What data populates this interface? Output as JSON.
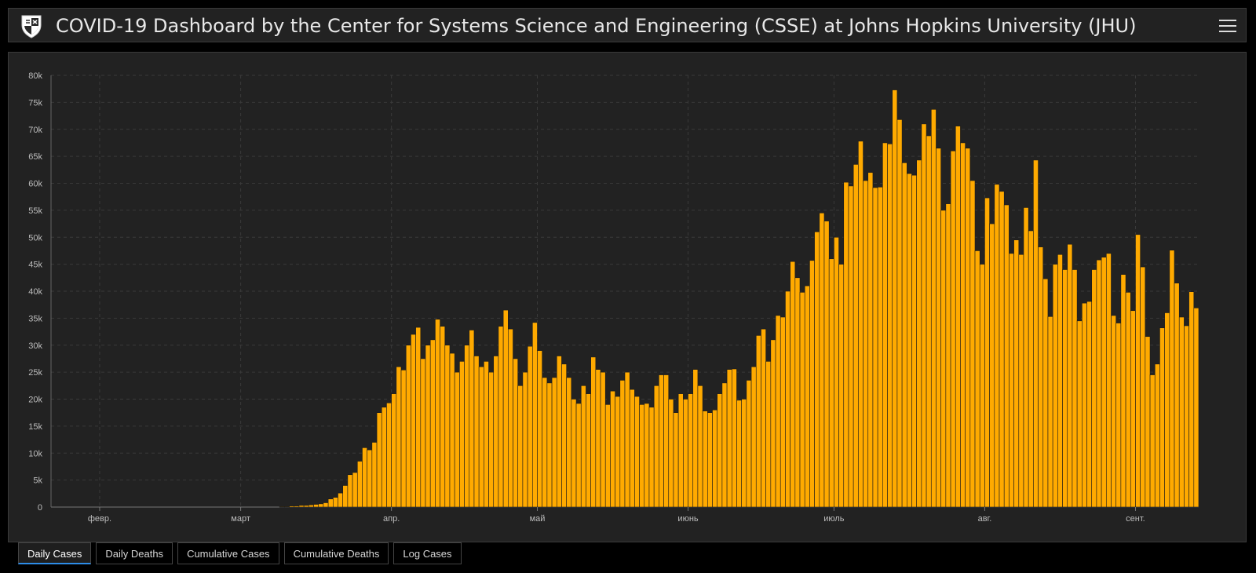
{
  "header": {
    "title": "COVID-19 Dashboard by the Center for Systems Science and Engineering (CSSE) at Johns Hopkins University (JHU)"
  },
  "colors": {
    "background": "#000000",
    "panel": "#222222",
    "bar": "#ffaa00",
    "grid": "#3a3a3a",
    "text": "#e8e8e8",
    "active_tab_underline": "#2d8ce8"
  },
  "tabs": [
    {
      "label": "Daily Cases",
      "active": true
    },
    {
      "label": "Daily Deaths",
      "active": false
    },
    {
      "label": "Cumulative Cases",
      "active": false
    },
    {
      "label": "Cumulative Deaths",
      "active": false
    },
    {
      "label": "Log Cases",
      "active": false
    }
  ],
  "chart_data": {
    "type": "bar",
    "title": "",
    "xlabel": "",
    "ylabel": "",
    "ylim": [
      0,
      80000
    ],
    "grid": true,
    "y_ticks": [
      "0",
      "5k",
      "10k",
      "15k",
      "20k",
      "25k",
      "30k",
      "35k",
      "40k",
      "45k",
      "50k",
      "55k",
      "60k",
      "65k",
      "70k",
      "75k",
      "80k"
    ],
    "x_ticks": [
      "февр.",
      "март",
      "апр.",
      "май",
      "июнь",
      "июль",
      "авг.",
      "сент."
    ],
    "x_tick_days": [
      10,
      39,
      70,
      100,
      131,
      161,
      192,
      223
    ],
    "series": [
      {
        "values": [
          0,
          0,
          0,
          0,
          0,
          0,
          0,
          0,
          0,
          0,
          0,
          0,
          0,
          0,
          0,
          0,
          0,
          0,
          0,
          0,
          0,
          0,
          0,
          0,
          0,
          0,
          0,
          0,
          0,
          0,
          0,
          0,
          0,
          0,
          0,
          0,
          0,
          0,
          0,
          0,
          0,
          0,
          0,
          0,
          0,
          0,
          0,
          100,
          100,
          200,
          200,
          300,
          300,
          400,
          500,
          600,
          800,
          1500,
          1800,
          2600,
          4000,
          6000,
          6400,
          8500,
          11000,
          10600,
          12000,
          17500,
          18500,
          19300,
          21000,
          26000,
          25400,
          30000,
          32000,
          33300,
          27500,
          30000,
          31000,
          34800,
          33500,
          30000,
          28500,
          25000,
          27000,
          30000,
          32800,
          28000,
          26000,
          27000,
          25000,
          28000,
          33500,
          36500,
          33000,
          27500,
          22500,
          25000,
          29800,
          34200,
          29000,
          24000,
          23000,
          24000,
          28000,
          26500,
          24000,
          20000,
          19200,
          22500,
          21000,
          27800,
          25500,
          25000,
          19000,
          21500,
          20500,
          23500,
          25000,
          21800,
          20500,
          19000,
          19200,
          18500,
          22500,
          24500,
          24500,
          20000,
          17500,
          21000,
          20000,
          21000,
          25500,
          22500,
          17800,
          17500,
          18000,
          21000,
          23000,
          25500,
          25600,
          19800,
          20000,
          23500,
          26000,
          31800,
          33000,
          27000,
          31000,
          35500,
          35200,
          40000,
          45500,
          42500,
          39800,
          41000,
          45700,
          51000,
          54500,
          53000,
          46000,
          50000,
          45000,
          60200,
          59500,
          63500,
          67800,
          60500,
          62000,
          59200,
          59300,
          67500,
          67300,
          77300,
          71800,
          63800,
          61800,
          61500,
          64300,
          71000,
          68800,
          73700,
          66500,
          55000,
          56200,
          66000,
          70600,
          67500,
          66500,
          60500,
          47500,
          45000,
          57300,
          52500,
          59800,
          58500,
          56000,
          47000,
          49500,
          46800,
          55500,
          51200,
          64300,
          48200,
          42300,
          35300,
          45000,
          46800,
          44000,
          48700,
          44000,
          34500,
          37800,
          38100,
          44000,
          45800,
          46300,
          47000,
          35500,
          34100,
          43100,
          39800,
          36400,
          50500,
          44500,
          31600,
          24500,
          26500,
          33200,
          36000,
          47600,
          41500,
          35200,
          33600,
          39900,
          36900
        ]
      }
    ]
  }
}
